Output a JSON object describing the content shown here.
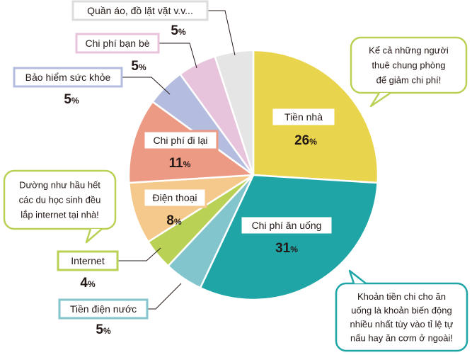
{
  "chart_data": {
    "type": "pie",
    "title": "",
    "unit": "%",
    "slices": [
      {
        "label": "Tiền nhà",
        "value": 26,
        "color": "#e8d44d"
      },
      {
        "label": "Chi phí ăn uống",
        "value": 31,
        "color": "#1fa5a5"
      },
      {
        "label": "Tiền điện nước",
        "value": 5,
        "color": "#82c5cd"
      },
      {
        "label": "Internet",
        "value": 4,
        "color": "#b9d155"
      },
      {
        "label": "Điện thoại",
        "value": 8,
        "color": "#f5c98b"
      },
      {
        "label": "Chi phí đi lại",
        "value": 11,
        "color": "#ec9a84"
      },
      {
        "label": "Bảo hiểm sức khỏe",
        "value": 5,
        "color": "#b4bde0"
      },
      {
        "label": "Chi phí bạn bè",
        "value": 5,
        "color": "#e8c3dc"
      },
      {
        "label": "Quần áo, đồ lặt vặt v.v...",
        "value": 5,
        "color": "#e5e5e5"
      }
    ],
    "label_colors": {
      "Tiền nhà": "#e8d44d",
      "Chi phí ăn uống": "#1fa5a5",
      "Tiền điện nước": "#82c5cd",
      "Internet": "#b9d155",
      "Điện thoại": "#f5c98b",
      "Chi phí đi lại": "#ec9a84",
      "Bảo hiểm sức khỏe": "#b4bde0",
      "Chi phí bạn bè": "#e8c3dc",
      "Quần áo, đồ lặt vặt v.v...": "#dcdcdc"
    }
  },
  "callouts": [
    {
      "id": "roommates",
      "lines": [
        "Kể cả những người",
        "thuê chung phòng",
        "để giảm chi phí!"
      ],
      "border_color": "#b9d155"
    },
    {
      "id": "internet",
      "lines": [
        "Dường như hầu hết",
        "các du học sinh đều",
        "lắp internet tại nhà!"
      ],
      "border_color": "#b9d155"
    },
    {
      "id": "food",
      "lines": [
        "Khoản tiền chi cho ăn",
        "uống là khoản biến động",
        "nhiều nhất tùy vào tỉ lệ tự",
        "nấu hay ăn cơm ở ngoài!"
      ],
      "border_color": "#1fa5a5"
    }
  ]
}
